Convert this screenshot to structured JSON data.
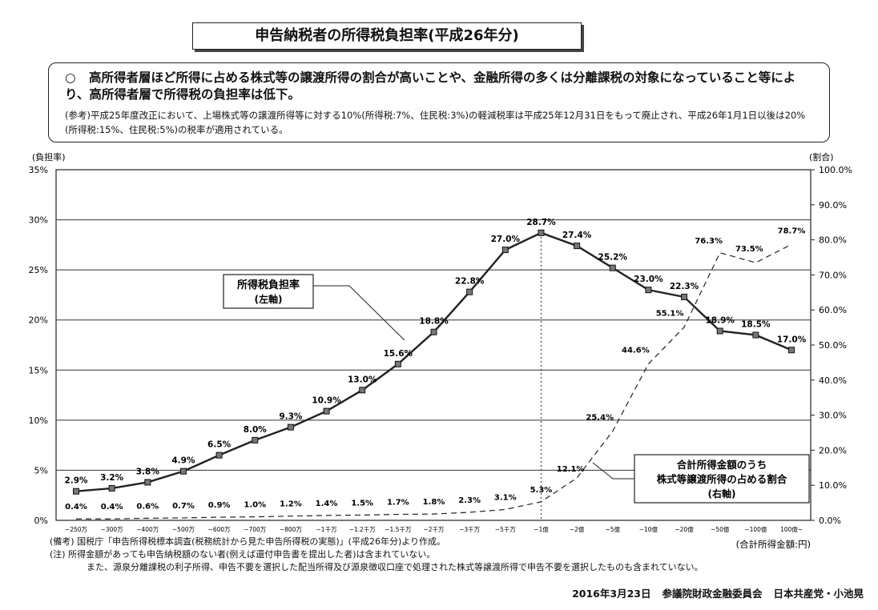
{
  "header": {
    "title": "申告納税者の所得税負担率(平成26年分)"
  },
  "summary": {
    "bullet": "○",
    "main_text": "高所得者層ほど所得に占める株式等の譲渡所得の割合が高いことや、金融所得の多くは分離課税の対象になっていること等により、高所得者層で所得税の負担率は低下。",
    "note": "(参考)平成25年度改正において、上場株式等の譲渡所得等に対する10%(所得税:7%、住民税:3%)の軽減税率は平成25年12月31日をもって廃止され、平成26年1月1日以後は20%(所得税:15%、住民税:5%)の税率が適用されている。"
  },
  "chart_data": {
    "type": "line",
    "left_axis_title": "(負担率)",
    "right_axis_title": "(割合)",
    "x_axis_title": "(合計所得金額:円)",
    "left_ticks": [
      "0%",
      "5%",
      "10%",
      "15%",
      "20%",
      "25%",
      "30%",
      "35%"
    ],
    "right_ticks": [
      "0.0%",
      "10.0%",
      "20.0%",
      "30.0%",
      "40.0%",
      "50.0%",
      "60.0%",
      "70.0%",
      "80.0%",
      "90.0%",
      "100.0%"
    ],
    "ylim_left": [
      0,
      35
    ],
    "ylim_right": [
      0,
      100
    ],
    "categories": [
      "~250万",
      "~300万",
      "~400万",
      "~500万",
      "~600万",
      "~700万",
      "~800万",
      "~1千万",
      "~1.2千万",
      "~1.5千万",
      "~2千万",
      "~3千万",
      "~5千万",
      "~1億",
      "~2億",
      "~5億",
      "~10億",
      "~20億",
      "~50億",
      "~100億",
      "100億~"
    ],
    "series": [
      {
        "name": "所得税負担率",
        "axis": "left",
        "style": "solid-with-markers",
        "values": [
          2.9,
          3.2,
          3.8,
          4.9,
          6.5,
          8.0,
          9.3,
          10.9,
          13.0,
          15.6,
          18.8,
          22.8,
          27.0,
          28.7,
          27.4,
          25.2,
          23.0,
          22.3,
          18.9,
          18.5,
          17.0
        ],
        "labels": [
          "2.9%",
          "3.2%",
          "3.8%",
          "4.9%",
          "6.5%",
          "8.0%",
          "9.3%",
          "10.9%",
          "13.0%",
          "15.6%",
          "18.8%",
          "22.8%",
          "27.0%",
          "28.7%",
          "27.4%",
          "25.2%",
          "23.0%",
          "22.3%",
          "18.9%",
          "18.5%",
          "17.0%"
        ]
      },
      {
        "name": "合計所得金額のうち株式等譲渡所得の占める割合",
        "axis": "right",
        "style": "dashed",
        "values": [
          0.4,
          0.4,
          0.6,
          0.7,
          0.9,
          1.0,
          1.2,
          1.4,
          1.5,
          1.7,
          1.8,
          2.3,
          3.1,
          5.3,
          12.1,
          25.4,
          44.6,
          55.1,
          76.3,
          73.5,
          78.7
        ],
        "labels": [
          "0.4%",
          "0.4%",
          "0.6%",
          "0.7%",
          "0.9%",
          "1.0%",
          "1.2%",
          "1.4%",
          "1.5%",
          "1.7%",
          "1.8%",
          "2.3%",
          "3.1%",
          "5.3%",
          "12.1%",
          "25.4%",
          "44.6%",
          "55.1%",
          "76.3%",
          "73.5%",
          "78.7%"
        ]
      }
    ],
    "callout_left": [
      "所得税負担率",
      "(左軸)"
    ],
    "callout_right": [
      "合計所得金額のうち",
      "株式等譲渡所得の占める割合",
      "(右軸)"
    ],
    "grid": "horizontal",
    "peak_marker": "vertical dotted line at ~1億"
  },
  "footer": {
    "source": "(備考) 国税庁「申告所得税標本調査(税務統計から見た申告所得税の実態)」(平成26年分)より作成。",
    "note1": "(注)  所得金額があっても申告納税額のない者(例えば還付申告書を提出した者)は含まれていない。",
    "note2": "また、源泉分離課税の利子所得、申告不要を選択した配当所得及び源泉徴収口座で処理された株式等譲渡所得で申告不要を選択したものも含まれていない。",
    "date": "2016年3月23日",
    "committee": "参議院財政金融委員会",
    "party": "日本共産党・小池晃"
  }
}
